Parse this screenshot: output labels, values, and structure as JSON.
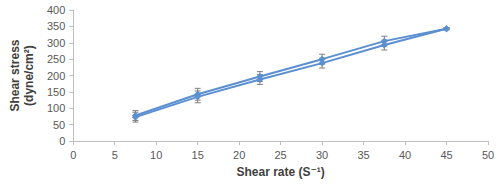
{
  "chart_data": {
    "type": "line",
    "x_label": "Shear rate (S⁻¹)",
    "y_label": "Shear stress\n(dyne/cm²)",
    "series": [
      {
        "color": "#5b8fd1",
        "marker": "diamond",
        "x": [
          7.5,
          15,
          22.5,
          30,
          37.5,
          45
        ],
        "values": [
          78,
          143,
          197,
          250,
          305,
          343
        ],
        "errors": [
          15,
          18,
          15,
          15,
          15,
          3
        ]
      },
      {
        "color": "#5b8fd1",
        "marker": "diamond",
        "x": [
          7.5,
          15,
          22.5,
          30,
          37.5,
          45
        ],
        "values": [
          73,
          135,
          188,
          238,
          293,
          343
        ],
        "errors": [
          15,
          18,
          15,
          15,
          15,
          3
        ]
      }
    ],
    "xlim": [
      0,
      50
    ],
    "xticks": [
      0,
      5,
      10,
      15,
      20,
      25,
      30,
      35,
      40,
      45,
      50
    ],
    "ylim": [
      0,
      400
    ],
    "yticks": [
      0,
      50,
      100,
      150,
      200,
      250,
      300,
      350,
      400
    ],
    "grid": false
  }
}
